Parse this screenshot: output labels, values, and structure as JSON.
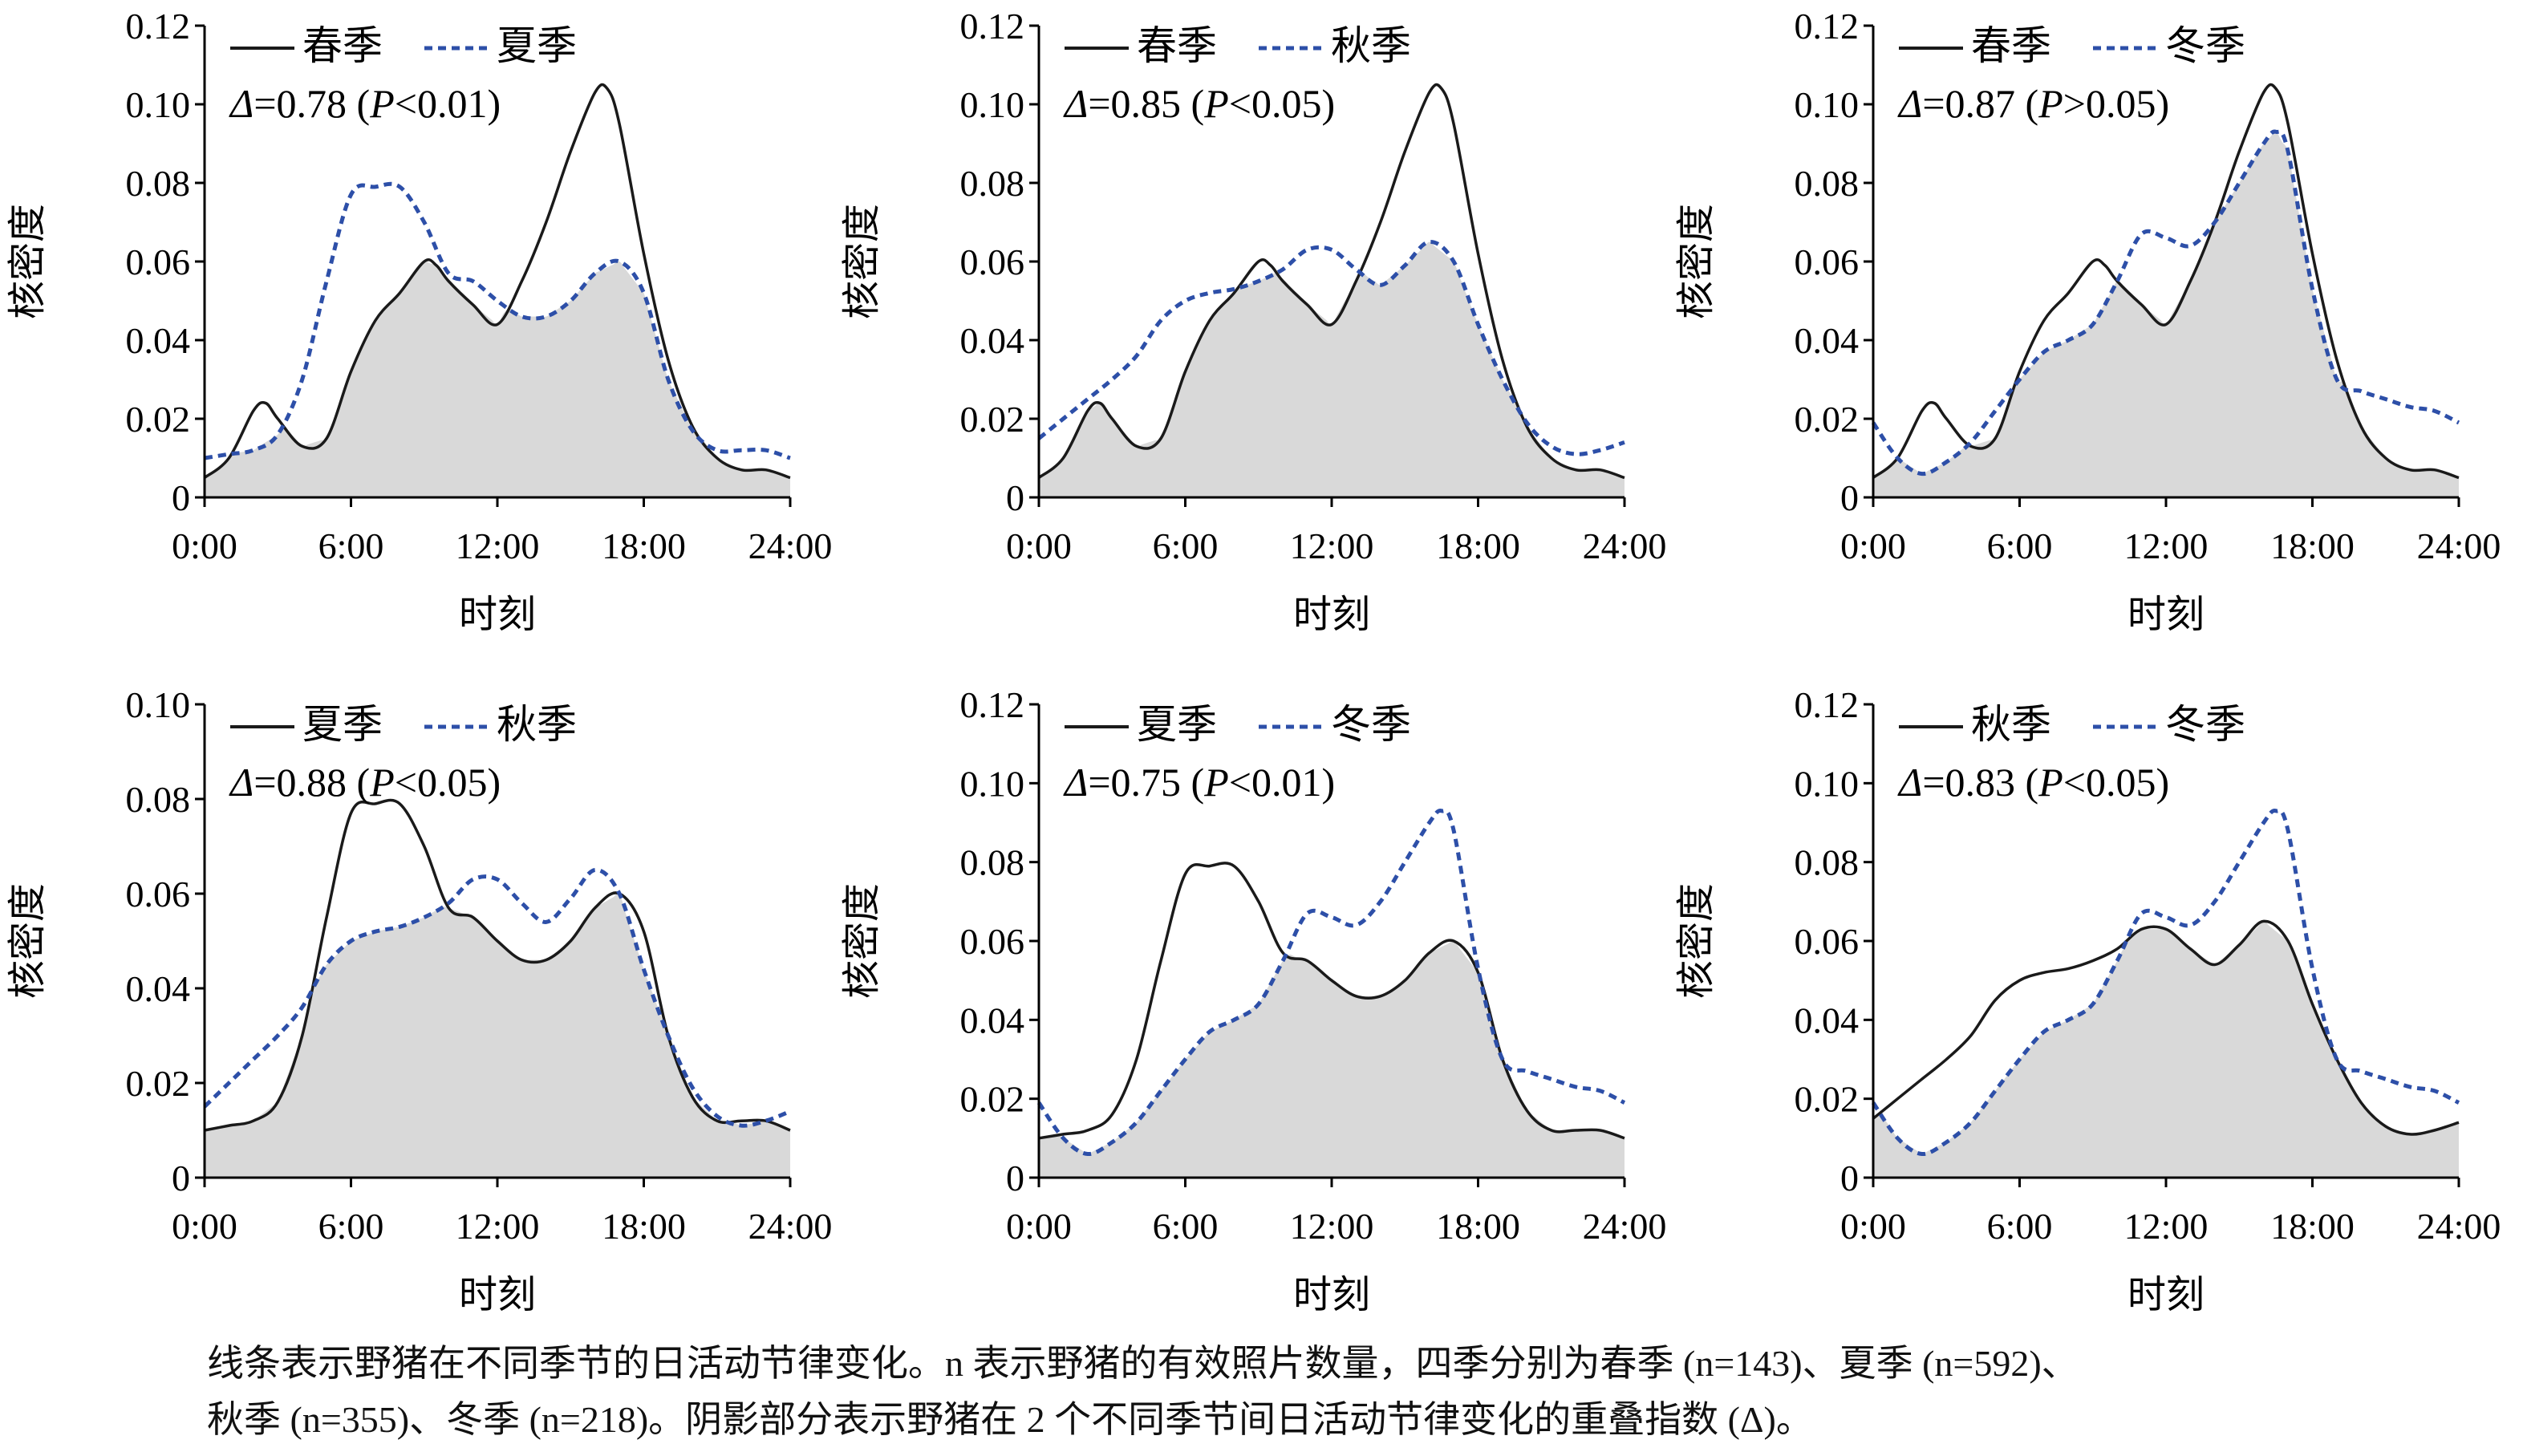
{
  "chart_data": [
    {
      "type": "area",
      "panel": "1",
      "ylabel": "核密度",
      "xlabel": "时刻",
      "ylim": [
        0,
        0.12
      ],
      "yticks": [
        "0",
        "0.02",
        "0.04",
        "0.06",
        "0.08",
        "0.10",
        "0.12"
      ],
      "xticks": [
        "0:00",
        "6:00",
        "12:00",
        "18:00",
        "24:00"
      ],
      "xlim": [
        0,
        24
      ],
      "series": [
        {
          "name": "春季",
          "style": "solid",
          "color": "#1a1a1a",
          "x": [
            0,
            1,
            2,
            2.5,
            3,
            4,
            5,
            6,
            7,
            8,
            9,
            9.5,
            10,
            11,
            12,
            13,
            14,
            15,
            16,
            16.5,
            17,
            18,
            19,
            20,
            21,
            22,
            23,
            24
          ],
          "y": [
            0.005,
            0.01,
            0.022,
            0.024,
            0.02,
            0.013,
            0.015,
            0.032,
            0.045,
            0.052,
            0.06,
            0.059,
            0.055,
            0.049,
            0.044,
            0.055,
            0.07,
            0.088,
            0.103,
            0.104,
            0.095,
            0.062,
            0.035,
            0.018,
            0.01,
            0.007,
            0.007,
            0.005
          ]
        },
        {
          "name": "夏季",
          "style": "dashed",
          "color": "#2d4fa8",
          "x": [
            0,
            1,
            2,
            3,
            4,
            5,
            6,
            7,
            8,
            9,
            10,
            11,
            12,
            13,
            14,
            15,
            16,
            17,
            18,
            19,
            20,
            21,
            22,
            23,
            24
          ],
          "y": [
            0.01,
            0.011,
            0.012,
            0.016,
            0.03,
            0.055,
            0.077,
            0.079,
            0.079,
            0.07,
            0.057,
            0.055,
            0.05,
            0.046,
            0.046,
            0.05,
            0.057,
            0.06,
            0.052,
            0.03,
            0.017,
            0.012,
            0.012,
            0.012,
            0.01
          ]
        }
      ],
      "annotation": {
        "prefix": "Δ",
        "text": "=0.78 (",
        "p": "P",
        "rel": "<0.01)"
      }
    },
    {
      "type": "area",
      "panel": "2",
      "ylabel": "核密度",
      "xlabel": "时刻",
      "ylim": [
        0,
        0.12
      ],
      "yticks": [
        "0",
        "0.02",
        "0.04",
        "0.06",
        "0.08",
        "0.10",
        "0.12"
      ],
      "xticks": [
        "0:00",
        "6:00",
        "12:00",
        "18:00",
        "24:00"
      ],
      "xlim": [
        0,
        24
      ],
      "series": [
        {
          "name": "春季",
          "style": "solid",
          "color": "#1a1a1a",
          "x": [
            0,
            1,
            2,
            2.5,
            3,
            4,
            5,
            6,
            7,
            8,
            9,
            9.5,
            10,
            11,
            12,
            13,
            14,
            15,
            16,
            16.5,
            17,
            18,
            19,
            20,
            21,
            22,
            23,
            24
          ],
          "y": [
            0.005,
            0.01,
            0.022,
            0.024,
            0.02,
            0.013,
            0.015,
            0.032,
            0.045,
            0.052,
            0.06,
            0.059,
            0.055,
            0.049,
            0.044,
            0.055,
            0.07,
            0.088,
            0.103,
            0.104,
            0.095,
            0.062,
            0.035,
            0.018,
            0.01,
            0.007,
            0.007,
            0.005
          ]
        },
        {
          "name": "秋季",
          "style": "dashed",
          "color": "#2d4fa8",
          "x": [
            0,
            1,
            2,
            3,
            4,
            5,
            6,
            7,
            8,
            9,
            10,
            11,
            12,
            13,
            14,
            15,
            16,
            17,
            18,
            19,
            20,
            21,
            22,
            23,
            24
          ],
          "y": [
            0.015,
            0.02,
            0.025,
            0.03,
            0.036,
            0.045,
            0.05,
            0.052,
            0.053,
            0.055,
            0.058,
            0.063,
            0.063,
            0.058,
            0.054,
            0.059,
            0.065,
            0.06,
            0.044,
            0.03,
            0.019,
            0.013,
            0.011,
            0.012,
            0.014
          ]
        }
      ],
      "annotation": {
        "prefix": "Δ",
        "text": "=0.85 (",
        "p": "P",
        "rel": "<0.05)"
      }
    },
    {
      "type": "area",
      "panel": "3",
      "ylabel": "核密度",
      "xlabel": "时刻",
      "ylim": [
        0,
        0.12
      ],
      "yticks": [
        "0",
        "0.02",
        "0.04",
        "0.06",
        "0.08",
        "0.10",
        "0.12"
      ],
      "xticks": [
        "0:00",
        "6:00",
        "12:00",
        "18:00",
        "24:00"
      ],
      "xlim": [
        0,
        24
      ],
      "series": [
        {
          "name": "春季",
          "style": "solid",
          "color": "#1a1a1a",
          "x": [
            0,
            1,
            2,
            2.5,
            3,
            4,
            5,
            6,
            7,
            8,
            9,
            9.5,
            10,
            11,
            12,
            13,
            14,
            15,
            16,
            16.5,
            17,
            18,
            19,
            20,
            21,
            22,
            23,
            24
          ],
          "y": [
            0.005,
            0.01,
            0.022,
            0.024,
            0.02,
            0.013,
            0.015,
            0.032,
            0.045,
            0.052,
            0.06,
            0.059,
            0.055,
            0.049,
            0.044,
            0.055,
            0.07,
            0.088,
            0.103,
            0.104,
            0.095,
            0.062,
            0.035,
            0.018,
            0.01,
            0.007,
            0.007,
            0.005
          ]
        },
        {
          "name": "冬季",
          "style": "dashed",
          "color": "#2d4fa8",
          "x": [
            0,
            1,
            2,
            3,
            4,
            5,
            6,
            7,
            8,
            9,
            10,
            11,
            12,
            13,
            14,
            15,
            16,
            16.5,
            17,
            18,
            19,
            20,
            21,
            22,
            23,
            24
          ],
          "y": [
            0.019,
            0.01,
            0.006,
            0.009,
            0.014,
            0.022,
            0.03,
            0.037,
            0.04,
            0.044,
            0.055,
            0.067,
            0.066,
            0.064,
            0.07,
            0.08,
            0.09,
            0.093,
            0.088,
            0.053,
            0.03,
            0.027,
            0.025,
            0.023,
            0.022,
            0.019
          ]
        }
      ],
      "annotation": {
        "prefix": "Δ",
        "text": "=0.87 (",
        "p": "P",
        "rel": ">0.05)"
      }
    },
    {
      "type": "area",
      "panel": "4",
      "ylabel": "核密度",
      "xlabel": "时刻",
      "ylim": [
        0,
        0.1
      ],
      "yticks": [
        "0",
        "0.02",
        "0.04",
        "0.06",
        "0.08",
        "0.10"
      ],
      "xticks": [
        "0:00",
        "6:00",
        "12:00",
        "18:00",
        "24:00"
      ],
      "xlim": [
        0,
        24
      ],
      "series": [
        {
          "name": "夏季",
          "style": "solid",
          "color": "#1a1a1a",
          "x": [
            0,
            1,
            2,
            3,
            4,
            5,
            6,
            7,
            8,
            9,
            10,
            11,
            12,
            13,
            14,
            15,
            16,
            17,
            18,
            19,
            20,
            21,
            22,
            23,
            24
          ],
          "y": [
            0.01,
            0.011,
            0.012,
            0.016,
            0.03,
            0.055,
            0.077,
            0.079,
            0.079,
            0.07,
            0.057,
            0.055,
            0.05,
            0.046,
            0.046,
            0.05,
            0.057,
            0.06,
            0.052,
            0.03,
            0.017,
            0.012,
            0.012,
            0.012,
            0.01
          ]
        },
        {
          "name": "秋季",
          "style": "dashed",
          "color": "#2d4fa8",
          "x": [
            0,
            1,
            2,
            3,
            4,
            5,
            6,
            7,
            8,
            9,
            10,
            11,
            12,
            13,
            14,
            15,
            16,
            17,
            18,
            19,
            20,
            21,
            22,
            23,
            24
          ],
          "y": [
            0.015,
            0.02,
            0.025,
            0.03,
            0.036,
            0.045,
            0.05,
            0.052,
            0.053,
            0.055,
            0.058,
            0.063,
            0.063,
            0.058,
            0.054,
            0.059,
            0.065,
            0.06,
            0.044,
            0.03,
            0.019,
            0.013,
            0.011,
            0.012,
            0.014
          ]
        }
      ],
      "annotation": {
        "prefix": "Δ",
        "text": "=0.88 (",
        "p": "P",
        "rel": "<0.05)"
      }
    },
    {
      "type": "area",
      "panel": "5",
      "ylabel": "核密度",
      "xlabel": "时刻",
      "ylim": [
        0,
        0.12
      ],
      "yticks": [
        "0",
        "0.02",
        "0.04",
        "0.06",
        "0.08",
        "0.10",
        "0.12"
      ],
      "xticks": [
        "0:00",
        "6:00",
        "12:00",
        "18:00",
        "24:00"
      ],
      "xlim": [
        0,
        24
      ],
      "series": [
        {
          "name": "夏季",
          "style": "solid",
          "color": "#1a1a1a",
          "x": [
            0,
            1,
            2,
            3,
            4,
            5,
            6,
            7,
            8,
            9,
            10,
            11,
            12,
            13,
            14,
            15,
            16,
            17,
            18,
            19,
            20,
            21,
            22,
            23,
            24
          ],
          "y": [
            0.01,
            0.011,
            0.012,
            0.016,
            0.03,
            0.055,
            0.077,
            0.079,
            0.079,
            0.07,
            0.057,
            0.055,
            0.05,
            0.046,
            0.046,
            0.05,
            0.057,
            0.06,
            0.052,
            0.03,
            0.017,
            0.012,
            0.012,
            0.012,
            0.01
          ]
        },
        {
          "name": "冬季",
          "style": "dashed",
          "color": "#2d4fa8",
          "x": [
            0,
            1,
            2,
            3,
            4,
            5,
            6,
            7,
            8,
            9,
            10,
            11,
            12,
            13,
            14,
            15,
            16,
            16.5,
            17,
            18,
            19,
            20,
            21,
            22,
            23,
            24
          ],
          "y": [
            0.019,
            0.01,
            0.006,
            0.009,
            0.014,
            0.022,
            0.03,
            0.037,
            0.04,
            0.044,
            0.055,
            0.067,
            0.066,
            0.064,
            0.07,
            0.08,
            0.09,
            0.093,
            0.088,
            0.053,
            0.03,
            0.027,
            0.025,
            0.023,
            0.022,
            0.019
          ]
        }
      ],
      "annotation": {
        "prefix": "Δ",
        "text": "=0.75 (",
        "p": "P",
        "rel": "<0.01)"
      }
    },
    {
      "type": "area",
      "panel": "6",
      "ylabel": "核密度",
      "xlabel": "时刻",
      "ylim": [
        0,
        0.12
      ],
      "yticks": [
        "0",
        "0.02",
        "0.04",
        "0.06",
        "0.08",
        "0.10",
        "0.12"
      ],
      "xticks": [
        "0:00",
        "6:00",
        "12:00",
        "18:00",
        "24:00"
      ],
      "xlim": [
        0,
        24
      ],
      "series": [
        {
          "name": "秋季",
          "style": "solid",
          "color": "#1a1a1a",
          "x": [
            0,
            1,
            2,
            3,
            4,
            5,
            6,
            7,
            8,
            9,
            10,
            11,
            12,
            13,
            14,
            15,
            16,
            17,
            18,
            19,
            20,
            21,
            22,
            23,
            24
          ],
          "y": [
            0.015,
            0.02,
            0.025,
            0.03,
            0.036,
            0.045,
            0.05,
            0.052,
            0.053,
            0.055,
            0.058,
            0.063,
            0.063,
            0.058,
            0.054,
            0.059,
            0.065,
            0.06,
            0.044,
            0.03,
            0.019,
            0.013,
            0.011,
            0.012,
            0.014
          ]
        },
        {
          "name": "冬季",
          "style": "dashed",
          "color": "#2d4fa8",
          "x": [
            0,
            1,
            2,
            3,
            4,
            5,
            6,
            7,
            8,
            9,
            10,
            11,
            12,
            13,
            14,
            15,
            16,
            16.5,
            17,
            18,
            19,
            20,
            21,
            22,
            23,
            24
          ],
          "y": [
            0.019,
            0.01,
            0.006,
            0.009,
            0.014,
            0.022,
            0.03,
            0.037,
            0.04,
            0.044,
            0.055,
            0.067,
            0.066,
            0.064,
            0.07,
            0.08,
            0.09,
            0.093,
            0.088,
            0.053,
            0.03,
            0.027,
            0.025,
            0.023,
            0.022,
            0.019
          ]
        }
      ],
      "annotation": {
        "prefix": "Δ",
        "text": "=0.83 (",
        "p": "P",
        "rel": "<0.05)"
      }
    }
  ],
  "colors": {
    "overlap_fill": "#d9d9d9",
    "axis": "#000000"
  },
  "caption": {
    "line1": "线条表示野猪在不同季节的日活动节律变化。n 表示野猪的有效照片数量，四季分别为春季 (n=143)、夏季 (n=592)、",
    "line2": "秋季 (n=355)、冬季 (n=218)。阴影部分表示野猪在 2 个不同季节间日活动节律变化的重叠指数 (Δ)。"
  }
}
